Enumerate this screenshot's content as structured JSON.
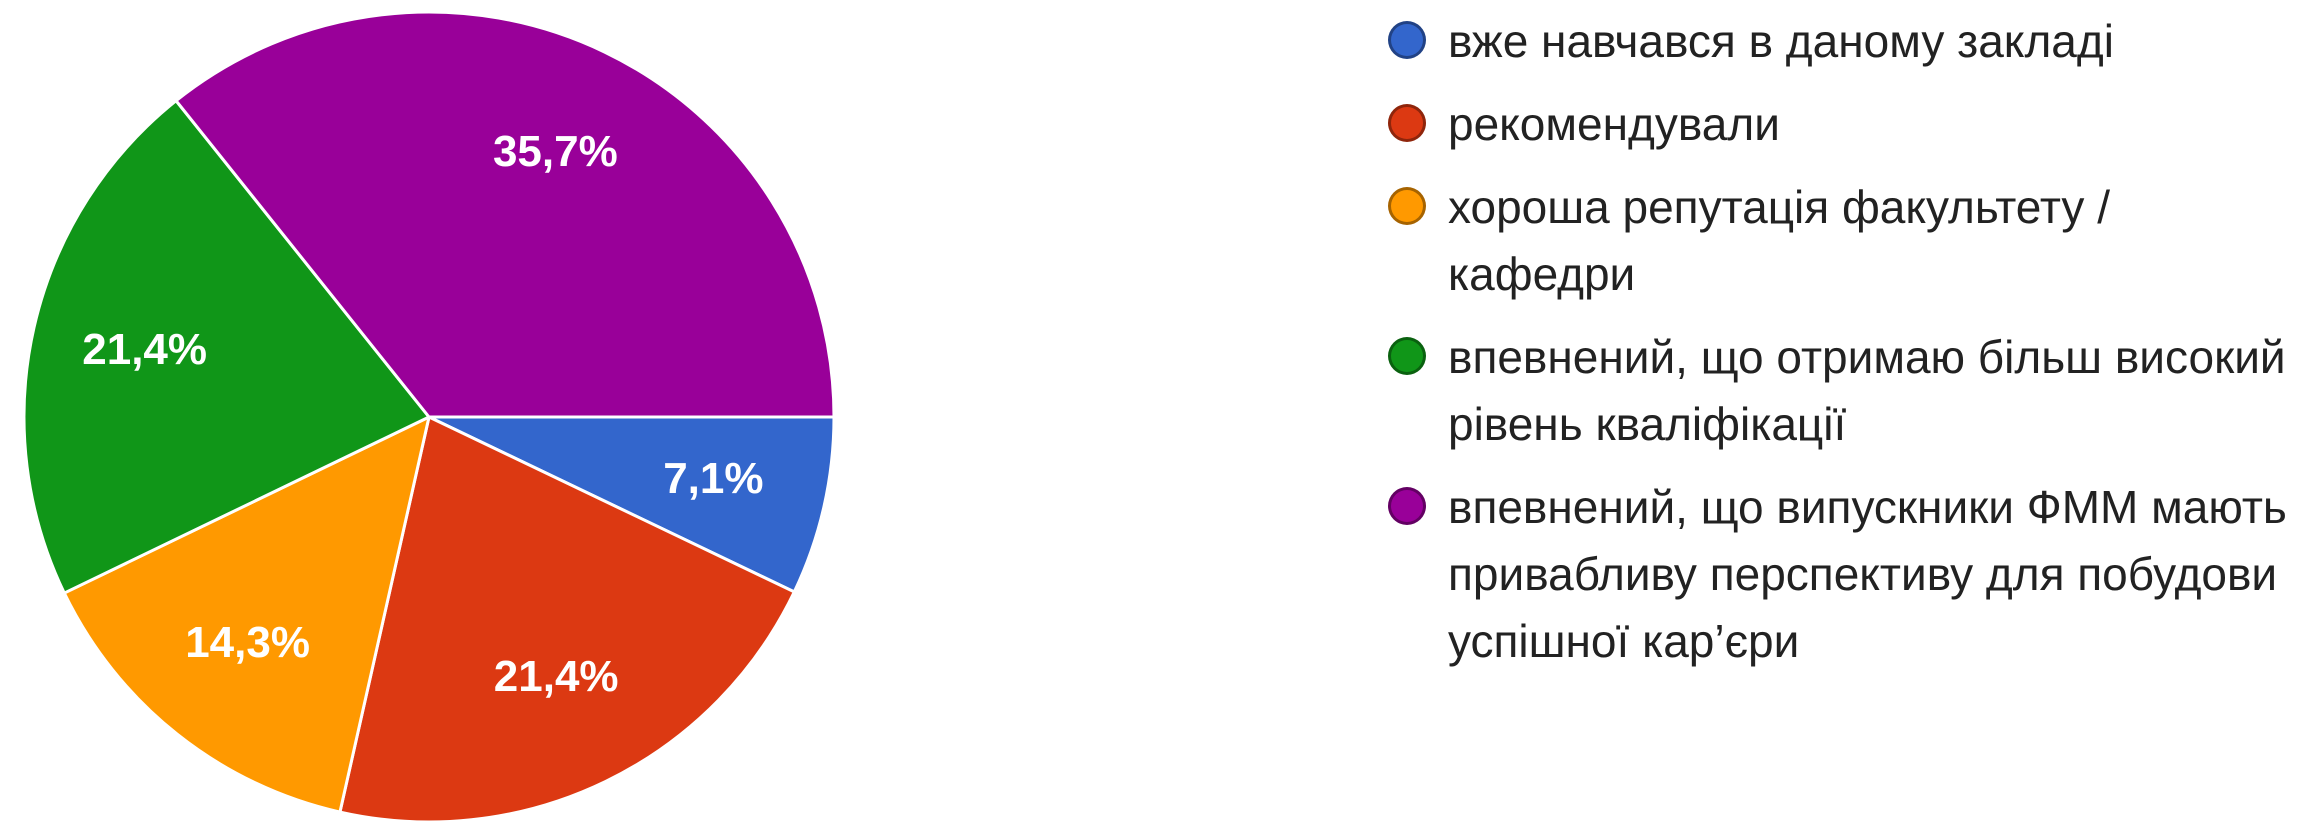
{
  "chart_data": {
    "type": "pie",
    "categories": [
      "вже навчався в даному закладі",
      "рекомендували",
      "хороша репутація факультету / кафедри",
      "впевнений, що отримаю більш високий рівень кваліфікації",
      "впевнений, що випускники ФММ мають привабливу перспективу для побудови успішної кар’єри"
    ],
    "values": [
      7.1,
      21.4,
      14.3,
      21.4,
      35.7
    ],
    "value_labels": [
      "7,1%",
      "21,4%",
      "14,3%",
      "21,4%",
      "35,7%"
    ],
    "colors": [
      "#3366cc",
      "#dc3912",
      "#ff9900",
      "#109618",
      "#990099"
    ],
    "legend": "right"
  }
}
